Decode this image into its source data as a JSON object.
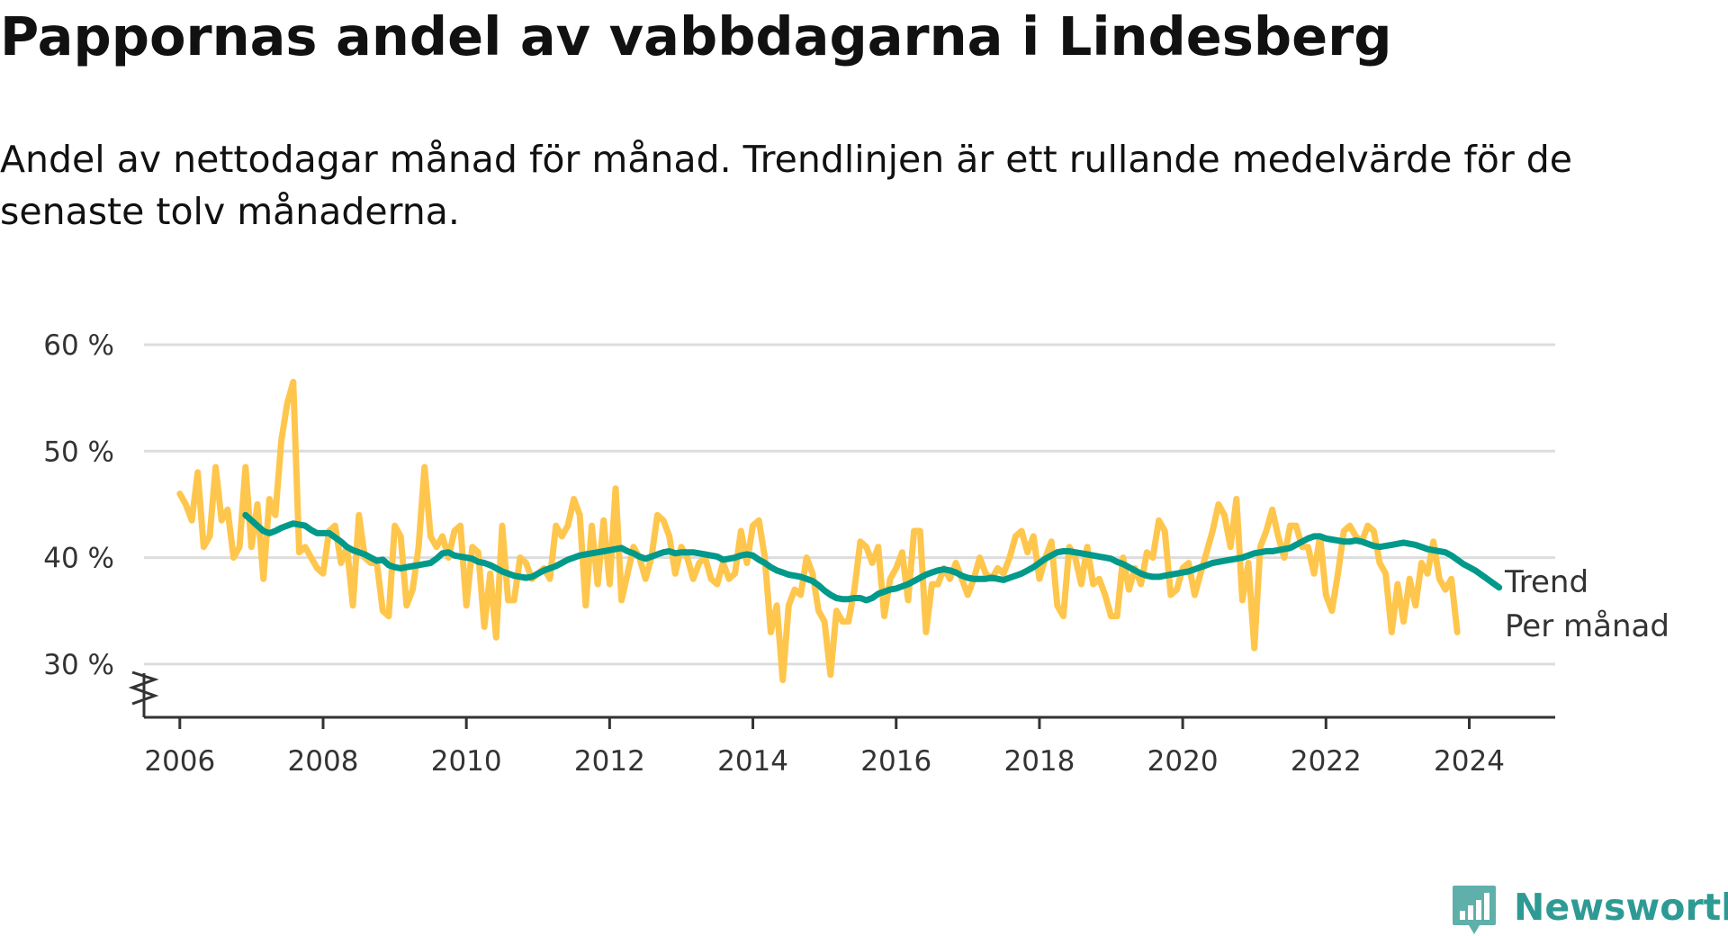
{
  "chart_data": {
    "type": "line",
    "title": "Pappornas andel av vabbdagarna i Lindesberg",
    "subtitle": "Andel av nettodagar månad för månad. Trendlinjen är ett rullande medelvärde för de senaste tolv månaderna.",
    "xlabel": "",
    "ylabel": "",
    "xlim": [
      2005.5,
      2025.2
    ],
    "ylim": [
      25,
      60
    ],
    "x_ticks": [
      "2006",
      "2008",
      "2010",
      "2012",
      "2014",
      "2016",
      "2018",
      "2020",
      "2022",
      "2024"
    ],
    "y_ticks": [
      {
        "value": 30,
        "label": "30 %"
      },
      {
        "value": 40,
        "label": "40 %"
      },
      {
        "value": 50,
        "label": "50 %"
      },
      {
        "value": 60,
        "label": "60 %"
      }
    ],
    "grid": "horizontal",
    "axis_break": true,
    "legend": "inline-right",
    "colors": {
      "trend": "#00998a",
      "monthly": "#ffc64d",
      "grid": "#dddddd",
      "axis": "#333333"
    },
    "series": [
      {
        "name": "Per månad",
        "color": "#ffc64d",
        "start": [
          2006,
          1
        ],
        "values": [
          46,
          45,
          43.5,
          48,
          41,
          42,
          48.5,
          43.5,
          44.5,
          40,
          41,
          48.5,
          41,
          45,
          38,
          45.5,
          44,
          51,
          54.5,
          56.5,
          40.5,
          41,
          40,
          39,
          38.5,
          42.5,
          43,
          39.5,
          41,
          35.5,
          44,
          40,
          39.5,
          39.5,
          35,
          34.5,
          43,
          42,
          35.5,
          37,
          41,
          48.5,
          42,
          41,
          42,
          40,
          42.5,
          43,
          35.5,
          41,
          40.5,
          33.5,
          38.5,
          32.5,
          43,
          36,
          36,
          40,
          39.5,
          38,
          38.5,
          39,
          38,
          43,
          42,
          43,
          45.5,
          44,
          35.5,
          43,
          37.5,
          43.5,
          37.5,
          46.5,
          36,
          38.5,
          41,
          40,
          38,
          40,
          44,
          43.5,
          42,
          38.5,
          41,
          40,
          38,
          39.5,
          40,
          38,
          37.5,
          39.5,
          38,
          38.5,
          42.5,
          39.5,
          43,
          43.5,
          40,
          33,
          35.5,
          28.5,
          35.5,
          37,
          36.5,
          40,
          38.5,
          35,
          34,
          29,
          35,
          34,
          34,
          37,
          41.5,
          41,
          39.5,
          41,
          34.5,
          38,
          39,
          40.5,
          36,
          42.5,
          42.5,
          33,
          37.5,
          37.5,
          39,
          38,
          39.5,
          38,
          36.5,
          38,
          40,
          38.5,
          38,
          39,
          38.5,
          40,
          42,
          42.5,
          40.5,
          42,
          38,
          40,
          41.5,
          35.5,
          34.5,
          41,
          40,
          37.5,
          41,
          37.5,
          38,
          36.5,
          34.5,
          34.5,
          40,
          37,
          39,
          37.5,
          40.5,
          40,
          43.5,
          42.5,
          36.5,
          37,
          39,
          39.5,
          36.5,
          38.5,
          40.5,
          42.5,
          45,
          44,
          41,
          45.5,
          36,
          39.5,
          31.5,
          41,
          42.5,
          44.5,
          42,
          40,
          43,
          43,
          41,
          41,
          38.5,
          42,
          36.5,
          35,
          38.5,
          42.5,
          43,
          42,
          41.5,
          43,
          42.5,
          39.5,
          38.5,
          33,
          37.5,
          34,
          38,
          35.5,
          39.5,
          38.5,
          41.5,
          38,
          37,
          38,
          33
        ]
      },
      {
        "name": "Trend",
        "color": "#00998a",
        "start": [
          2006,
          12
        ],
        "values": [
          44,
          43.5,
          43,
          42.5,
          42.3,
          42.5,
          42.8,
          43,
          43.2,
          43.1,
          43,
          42.6,
          42.3,
          42.3,
          42.3,
          41.9,
          41.5,
          41,
          40.7,
          40.5,
          40.3,
          40,
          39.7,
          39.8,
          39.3,
          39.1,
          39,
          39.1,
          39.2,
          39.3,
          39.4,
          39.5,
          39.9,
          40.4,
          40.5,
          40.2,
          40.1,
          40,
          39.9,
          39.6,
          39.5,
          39.3,
          39,
          38.7,
          38.5,
          38.3,
          38.2,
          38.1,
          38.2,
          38.5,
          38.8,
          39,
          39.2,
          39.5,
          39.8,
          40,
          40.2,
          40.3,
          40.4,
          40.5,
          40.6,
          40.7,
          40.8,
          40.9,
          40.6,
          40.4,
          40.1,
          39.9,
          40.1,
          40.3,
          40.5,
          40.6,
          40.4,
          40.5,
          40.5,
          40.5,
          40.4,
          40.3,
          40.2,
          40.1,
          39.8,
          39.9,
          40,
          40.2,
          40.3,
          40.2,
          39.8,
          39.5,
          39.1,
          38.8,
          38.6,
          38.4,
          38.3,
          38.2,
          38,
          37.8,
          37.4,
          36.9,
          36.5,
          36.2,
          36.1,
          36.1,
          36.2,
          36.2,
          36,
          36.2,
          36.6,
          36.8,
          37,
          37.1,
          37.3,
          37.5,
          37.8,
          38.1,
          38.4,
          38.6,
          38.8,
          38.9,
          38.8,
          38.6,
          38.3,
          38.1,
          38,
          38,
          38,
          38.1,
          38,
          37.9,
          38.1,
          38.3,
          38.5,
          38.8,
          39.1,
          39.5,
          39.9,
          40.2,
          40.5,
          40.6,
          40.6,
          40.5,
          40.4,
          40.3,
          40.2,
          40.1,
          40,
          39.9,
          39.6,
          39.4,
          39.1,
          38.8,
          38.5,
          38.3,
          38.2,
          38.2,
          38.3,
          38.4,
          38.5,
          38.6,
          38.7,
          38.9,
          39.1,
          39.3,
          39.5,
          39.6,
          39.7,
          39.8,
          39.9,
          40,
          40.2,
          40.4,
          40.5,
          40.6,
          40.6,
          40.7,
          40.8,
          40.9,
          41.2,
          41.5,
          41.8,
          42,
          42,
          41.8,
          41.7,
          41.6,
          41.5,
          41.5,
          41.6,
          41.5,
          41.3,
          41.1,
          41,
          41.1,
          41.2,
          41.3,
          41.4,
          41.3,
          41.2,
          41,
          40.8,
          40.7,
          40.6,
          40.5,
          40.2,
          39.8,
          39.4,
          39.1,
          38.8,
          38.4,
          38,
          37.6,
          37.2
        ]
      }
    ]
  },
  "legend": {
    "trend": "Trend",
    "monthly": "Per månad"
  },
  "brand": {
    "name": "Newsworthy",
    "color": "#2e9a94",
    "icon": "bar-chart-speech-bubble-icon"
  }
}
